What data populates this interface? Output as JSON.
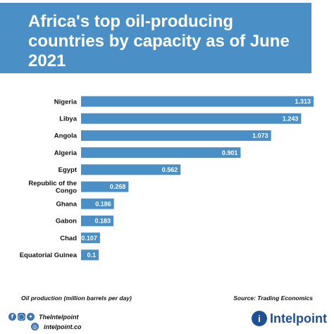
{
  "header": {
    "title_lines": [
      "Africa's top oil-producing",
      "countries by capacity as of June",
      "2021"
    ]
  },
  "footer": {
    "unit_note": "Oil production (million barrels per day)",
    "source": "Source: Trading Economics",
    "social_handle": "TheIntelpoint",
    "website": "intelpoint.co",
    "brand": "Intelpoint",
    "social_icons": [
      "facebook-icon",
      "instagram-icon",
      "twitter-icon"
    ]
  },
  "colors": {
    "bar": "#4a90c7",
    "header_band": "#4a90c7",
    "brand": "#1f4f94"
  },
  "chart_data": {
    "type": "bar",
    "orientation": "horizontal",
    "categories": [
      "Nigeria",
      "Libya",
      "Angola",
      "Algeria",
      "Egypt",
      "Republic of the Congo",
      "Ghana",
      "Gabon",
      "Chad",
      "Equatorial Guinea"
    ],
    "category_lines": [
      [
        "Nigeria"
      ],
      [
        "Libya"
      ],
      [
        "Angola"
      ],
      [
        "Algeria"
      ],
      [
        "Egypt"
      ],
      [
        "Republic of the",
        "Congo"
      ],
      [
        "Ghana"
      ],
      [
        "Gabon"
      ],
      [
        "Chad"
      ],
      [
        "Equatorial Guinea"
      ]
    ],
    "values": [
      1.313,
      1.243,
      1.073,
      0.901,
      0.562,
      0.268,
      0.186,
      0.183,
      0.107,
      0.1
    ],
    "value_labels": [
      "1.313",
      "1.243",
      "1.073",
      "0.901",
      "0.562",
      "0.268",
      "0.186",
      "0.183",
      "0.107",
      "0.1"
    ],
    "xlim": [
      0,
      1.313
    ],
    "grid": false,
    "legend": "none"
  }
}
